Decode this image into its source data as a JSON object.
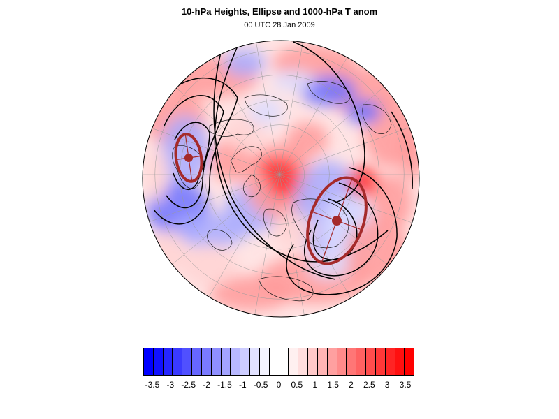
{
  "header": {
    "title": "10-hPa Heights, Ellipse and 1000-hPa T anom",
    "subtitle": "00 UTC 28 Jan 2009"
  },
  "colorbar": {
    "labels": [
      "-3.5",
      "-3",
      "-2.5",
      "-2",
      "-1.5",
      "-1",
      "-0.5",
      "0",
      "0.5",
      "1",
      "1.5",
      "2",
      "2.5",
      "3",
      "3.5"
    ],
    "colors": [
      "#0000ff",
      "#1111ff",
      "#2626ff",
      "#3a3aff",
      "#5050ff",
      "#6666ff",
      "#7a7aff",
      "#8f8fff",
      "#a3a3ff",
      "#b8b8ff",
      "#cdcdff",
      "#e2e2ff",
      "#f4f4ff",
      "#ffffff",
      "#ffffff",
      "#fff0f0",
      "#ffdede",
      "#ffc9c9",
      "#ffb4b4",
      "#ffa0a0",
      "#ff8b8b",
      "#ff7676",
      "#ff6262",
      "#ff4d4d",
      "#ff3838",
      "#ff2424",
      "#ff1010",
      "#ff0000"
    ]
  },
  "map": {
    "projection": "orthographic-north-polar",
    "anomaly_colors": {
      "strong_negative": "#6f73ff",
      "negative": "#a9abff",
      "weak_negative": "#dcdcff",
      "neutral": "#ffffff",
      "weak_positive": "#ffd3d3",
      "positive": "#ff9a9a",
      "strong_positive": "#ff3030"
    },
    "ellipse_color": "#a52a2a",
    "contour_color": "#000000"
  }
}
